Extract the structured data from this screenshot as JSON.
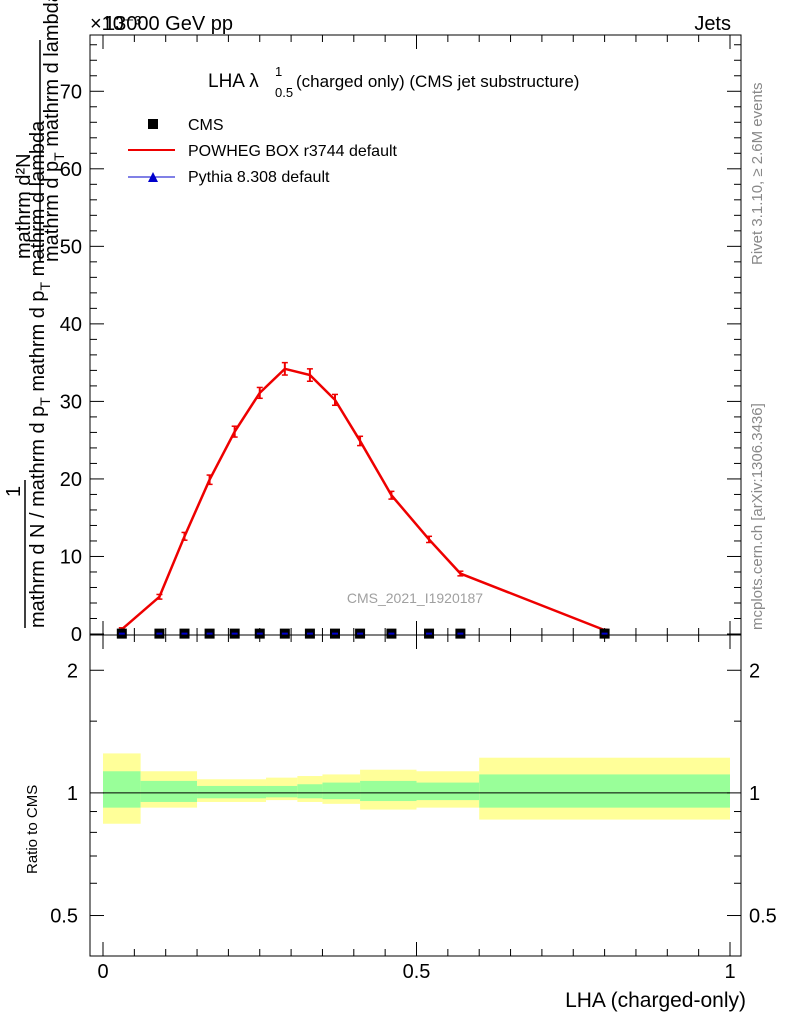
{
  "header": {
    "left": "13000 GeV pp",
    "right": "Jets",
    "exponent": "×10⁻³"
  },
  "side_labels": {
    "rivet": "Rivet 3.1.10, ≥ 2.6M events",
    "mcplots": "mcplots.cern.ch [arXiv:1306.3436]"
  },
  "watermark": "CMS_2021_I1920187",
  "plot_title": {
    "main": "LHA λ",
    "sup": "1",
    "sub": "0.5",
    "rest": " (charged only) (CMS jet substructure)"
  },
  "legend": [
    {
      "label": "CMS",
      "color": "#000000",
      "marker": "square"
    },
    {
      "label": "POWHEG BOX r3744 default",
      "color": "#ee0000",
      "marker": "line"
    },
    {
      "label": "Pythia 8.308 default",
      "color": "#0000cc",
      "marker": "triangle"
    }
  ],
  "ylabel_main": {
    "numerator": "mathrm d²N",
    "fraction_one": "1",
    "denom_top": "mathrm d p",
    "denom_top_sub": "T",
    "denom_top_rest": " mathrm d lambda",
    "left_line": "mathrm d N / mathrm d p",
    "left_sub": "T",
    "left_rest": " mathrm d p",
    "left_sub2": "T",
    "left_rest2": " mathrm d lambda"
  },
  "ylabel_ratio": "Ratio to CMS",
  "xlabel": "LHA (charged-only)",
  "chart_data": [
    {
      "type": "line",
      "panel": "main",
      "xlim": [
        0,
        1
      ],
      "ylim": [
        0,
        77
      ],
      "yticks": [
        0,
        10,
        20,
        30,
        40,
        50,
        60,
        70
      ],
      "ytick_labels": [
        "0",
        "10",
        "20",
        "30",
        "40",
        "50",
        "60",
        "70"
      ],
      "series": [
        {
          "name": "POWHEG BOX r3744 default",
          "color": "#ee0000",
          "x": [
            0.03,
            0.09,
            0.13,
            0.17,
            0.21,
            0.25,
            0.29,
            0.33,
            0.37,
            0.41,
            0.46,
            0.52,
            0.57,
            0.8
          ],
          "y": [
            0.6,
            4.8,
            12.6,
            19.9,
            26.1,
            31.1,
            34.2,
            33.4,
            30.2,
            24.9,
            17.9,
            12.2,
            7.8,
            0.5
          ],
          "yerr": [
            0.2,
            0.3,
            0.5,
            0.6,
            0.7,
            0.7,
            0.8,
            0.8,
            0.7,
            0.6,
            0.5,
            0.4,
            0.3,
            0.1
          ]
        },
        {
          "name": "CMS",
          "color": "#000000",
          "x": [
            0.03,
            0.09,
            0.13,
            0.17,
            0.21,
            0.25,
            0.29,
            0.33,
            0.37,
            0.41,
            0.46,
            0.52,
            0.57,
            0.8
          ],
          "y": [
            0.05,
            0.05,
            0.05,
            0.05,
            0.05,
            0.05,
            0.05,
            0.05,
            0.05,
            0.05,
            0.05,
            0.05,
            0.05,
            0.05
          ]
        },
        {
          "name": "Pythia 8.308 default",
          "color": "#0000cc",
          "x": [],
          "y": []
        }
      ]
    },
    {
      "type": "area",
      "panel": "ratio",
      "xlim": [
        0,
        1
      ],
      "ylim": [
        0.4,
        2.4
      ],
      "log_y": true,
      "yticks": [
        0.5,
        1,
        2
      ],
      "ytick_labels": [
        "0.5",
        "1",
        "2"
      ],
      "xticks": [
        0,
        0.5,
        1
      ],
      "xtick_labels": [
        "0",
        "0.5",
        "1"
      ],
      "reference_line": 1,
      "bins": [
        {
          "x0": 0.0,
          "x1": 0.06,
          "yellow": [
            0.84,
            1.25
          ],
          "green": [
            0.92,
            1.13
          ]
        },
        {
          "x0": 0.06,
          "x1": 0.15,
          "yellow": [
            0.92,
            1.13
          ],
          "green": [
            0.95,
            1.07
          ]
        },
        {
          "x0": 0.15,
          "x1": 0.26,
          "yellow": [
            0.95,
            1.08
          ],
          "green": [
            0.97,
            1.04
          ]
        },
        {
          "x0": 0.26,
          "x1": 0.31,
          "yellow": [
            0.96,
            1.09
          ],
          "green": [
            0.975,
            1.04
          ]
        },
        {
          "x0": 0.31,
          "x1": 0.35,
          "yellow": [
            0.95,
            1.1
          ],
          "green": [
            0.97,
            1.05
          ]
        },
        {
          "x0": 0.35,
          "x1": 0.41,
          "yellow": [
            0.94,
            1.11
          ],
          "green": [
            0.965,
            1.06
          ]
        },
        {
          "x0": 0.41,
          "x1": 0.5,
          "yellow": [
            0.91,
            1.14
          ],
          "green": [
            0.955,
            1.07
          ]
        },
        {
          "x0": 0.5,
          "x1": 0.6,
          "yellow": [
            0.92,
            1.13
          ],
          "green": [
            0.96,
            1.06
          ]
        },
        {
          "x0": 0.6,
          "x1": 1.0,
          "yellow": [
            0.86,
            1.22
          ],
          "green": [
            0.92,
            1.11
          ]
        }
      ],
      "band_colors": {
        "yellow": "#ffff99",
        "green": "#99ff99"
      }
    }
  ]
}
